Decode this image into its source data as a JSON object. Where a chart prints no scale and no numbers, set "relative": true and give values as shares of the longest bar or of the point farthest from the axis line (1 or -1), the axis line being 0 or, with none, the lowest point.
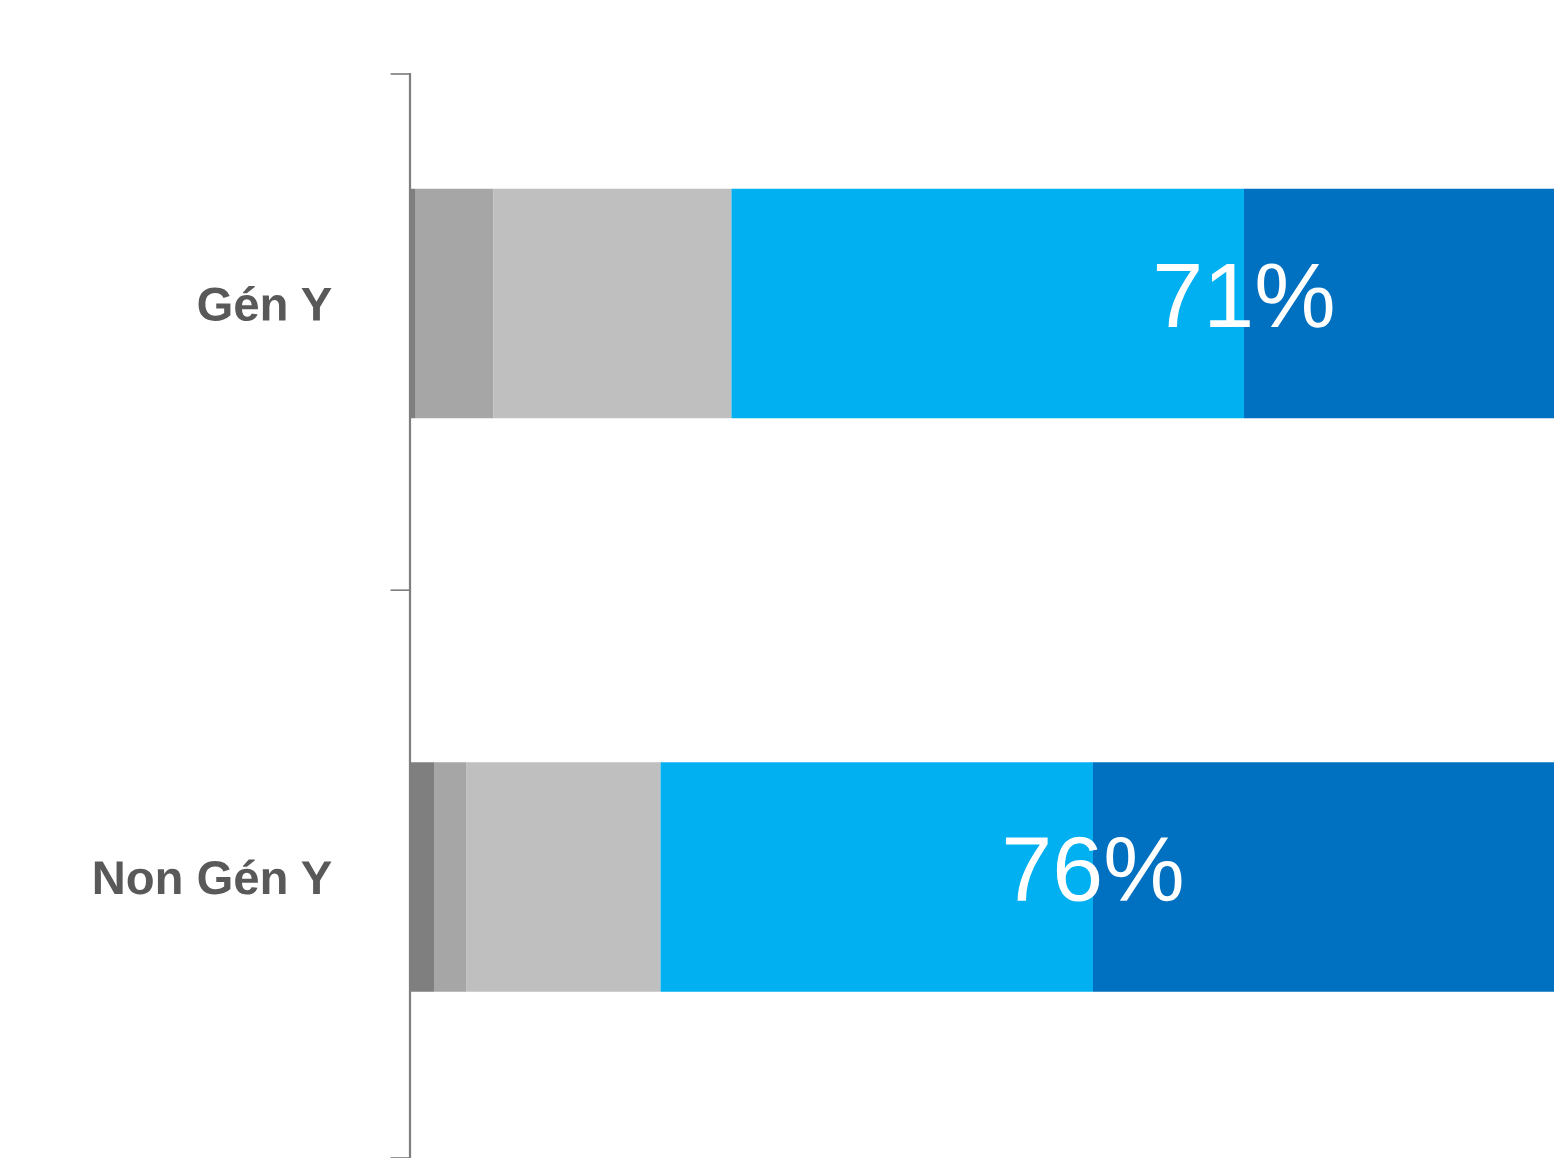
{
  "chart_data": {
    "type": "bar",
    "orientation": "horizontal",
    "stacked": true,
    "relative": true,
    "categories": [
      "Gén Y",
      "Non Gén Y"
    ],
    "series": [
      {
        "color": "#7f7f7f",
        "values": [
          0.005,
          0.021
        ]
      },
      {
        "color": "#a6a6a6",
        "values": [
          0.068,
          0.028
        ]
      },
      {
        "color": "#bfbfbf",
        "values": [
          0.208,
          0.17
        ]
      },
      {
        "color": "#00b0f0",
        "values": [
          0.448,
          0.378
        ]
      },
      {
        "color": "#0070c0",
        "values": [
          0.271,
          0.403
        ]
      }
    ],
    "annotations": [
      "71%",
      "76%"
    ],
    "grid": false
  }
}
